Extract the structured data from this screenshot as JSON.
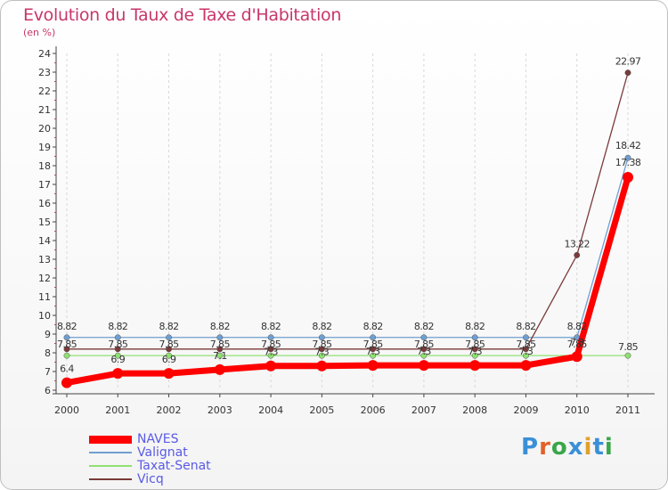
{
  "chart_data": {
    "type": "line",
    "title": "Evolution du Taux de Taxe d'Habitation",
    "ylabel": "(en %)",
    "xlabel": "",
    "categories": [
      "2000",
      "2001",
      "2002",
      "2003",
      "2004",
      "2005",
      "2006",
      "2007",
      "2008",
      "2009",
      "2010",
      "2011"
    ],
    "yticks": [
      "6",
      "7",
      "8",
      "9",
      "10",
      "11",
      "12",
      "13",
      "14",
      "15",
      "16",
      "17",
      "18",
      "19",
      "20",
      "21",
      "22",
      "23",
      "24"
    ],
    "ylim": [
      6,
      24
    ],
    "series": [
      {
        "name": "NAVES",
        "color": "#ff0000",
        "values": [
          6.4,
          6.9,
          6.9,
          7.1,
          7.3,
          7.3,
          7.33,
          7.33,
          7.33,
          7.33,
          7.8,
          17.38
        ],
        "labels": [
          "6.4",
          "6.9",
          "6.9",
          "7.1",
          "7.3",
          "7.3",
          "7.3",
          "7.3",
          "7.3",
          "7.3",
          "7.8",
          "17.38"
        ]
      },
      {
        "name": "Valignat",
        "color": "#6f9fd0",
        "values": [
          8.82,
          8.82,
          8.82,
          8.82,
          8.82,
          8.82,
          8.82,
          8.82,
          8.82,
          8.82,
          8.82,
          18.42
        ],
        "labels": [
          "8.82",
          "8.82",
          "8.82",
          "8.82",
          "8.82",
          "8.82",
          "8.82",
          "8.82",
          "8.82",
          "8.82",
          "8.82",
          "18.42"
        ]
      },
      {
        "name": "Taxat-Senat",
        "color": "#8fe070",
        "values": [
          7.85,
          7.85,
          7.85,
          7.85,
          7.85,
          7.85,
          7.85,
          7.85,
          7.85,
          7.85,
          7.85,
          7.85
        ],
        "labels": [
          "7.85",
          "7.85",
          "7.85",
          "7.85",
          "7.85",
          "7.85",
          "7.85",
          "7.85",
          "7.85",
          "7.85",
          "7.85",
          "7.85"
        ]
      },
      {
        "name": "Vicq",
        "color": "#7a3a3a",
        "values": [
          8.2,
          8.2,
          8.2,
          8.2,
          8.2,
          8.2,
          8.2,
          8.2,
          8.2,
          8.2,
          13.22,
          22.97
        ],
        "labels": [
          "",
          "",
          "",
          "",
          "",
          "",
          "",
          "",
          "",
          "",
          "13.22",
          "22.97"
        ]
      }
    ],
    "legend": [
      "NAVES",
      "Valignat",
      "Taxat-Senat",
      "Vicq"
    ],
    "legend_position": "bottom-left"
  },
  "logo_text": "Proxiti"
}
